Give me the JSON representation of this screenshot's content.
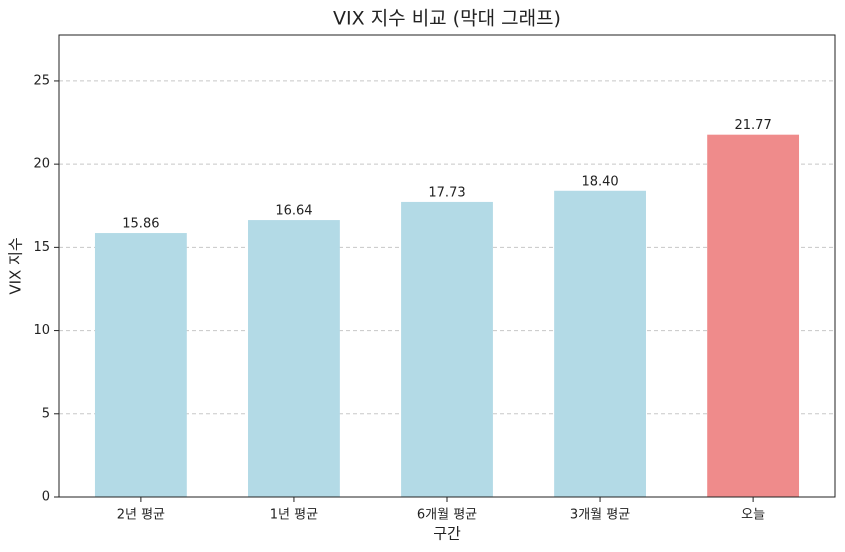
{
  "chart_data": {
    "type": "bar",
    "title": "VIX 지수 비교 (막대 그래프)",
    "x_label": "구간",
    "y_label": "VIX 지수",
    "categories": [
      "2년 평균",
      "1년 평균",
      "6개월 평균",
      "3개월 평균",
      "오늘"
    ],
    "values": [
      15.86,
      16.64,
      17.73,
      18.4,
      21.77
    ],
    "value_labels": [
      "15.86",
      "16.64",
      "17.73",
      "18.40",
      "21.77"
    ],
    "colors": [
      "#b3dae6",
      "#b3dae6",
      "#b3dae6",
      "#b3dae6",
      "#ef8b8b"
    ],
    "ylim": [
      0,
      27.76
    ],
    "yticks": [
      0,
      5,
      10,
      15,
      20,
      25
    ],
    "grid": true
  }
}
